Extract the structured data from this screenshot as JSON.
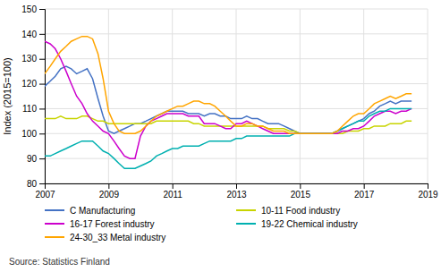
{
  "chart_data": {
    "type": "line",
    "y_label": "Index (2015=100)",
    "annotations": [
      "Source: Statistics Finland"
    ],
    "x": [
      2007.0,
      2007.17,
      2007.33,
      2007.5,
      2007.67,
      2007.83,
      2008.0,
      2008.17,
      2008.33,
      2008.5,
      2008.67,
      2008.83,
      2009.0,
      2009.17,
      2009.33,
      2009.5,
      2009.67,
      2009.83,
      2010.0,
      2010.17,
      2010.33,
      2010.5,
      2010.67,
      2010.83,
      2011.0,
      2011.17,
      2011.33,
      2011.5,
      2011.67,
      2011.83,
      2012.0,
      2012.17,
      2012.33,
      2012.5,
      2012.67,
      2012.83,
      2013.0,
      2013.17,
      2013.33,
      2013.5,
      2013.67,
      2013.83,
      2014.0,
      2014.17,
      2014.33,
      2014.5,
      2014.67,
      2014.83,
      2015.0,
      2015.17,
      2015.33,
      2015.5,
      2015.67,
      2015.83,
      2016.0,
      2016.17,
      2016.33,
      2016.5,
      2016.67,
      2016.83,
      2017.0,
      2017.17,
      2017.33,
      2017.5,
      2017.67,
      2017.83,
      2018.0,
      2018.17,
      2018.33,
      2018.5
    ],
    "series": [
      {
        "name": "C Manufacturing",
        "color": "#4472C4",
        "values": [
          119,
          121,
          123,
          126,
          127,
          126,
          124,
          125,
          126,
          122,
          114,
          107,
          101,
          100,
          101,
          102,
          103,
          104,
          104,
          105,
          106,
          107,
          108,
          109,
          109,
          109,
          109,
          108,
          108,
          108,
          107,
          108,
          108,
          107,
          107,
          106,
          106,
          106,
          107,
          106,
          106,
          105,
          104,
          104,
          104,
          103,
          102,
          101,
          100,
          100,
          100,
          100,
          100,
          100,
          100,
          101,
          102,
          103,
          104,
          105,
          106,
          108,
          109,
          111,
          112,
          113,
          112,
          113,
          113,
          113
        ]
      },
      {
        "name": "10-11 Food industry",
        "color": "#C8D400",
        "values": [
          106,
          106,
          106,
          107,
          106,
          106,
          106,
          107,
          107,
          106,
          105,
          105,
          104,
          104,
          104,
          104,
          104,
          104,
          104,
          104,
          104,
          105,
          105,
          105,
          105,
          105,
          105,
          105,
          104,
          104,
          103,
          103,
          103,
          103,
          103,
          103,
          103,
          103,
          103,
          103,
          103,
          103,
          102,
          102,
          102,
          102,
          101,
          101,
          100,
          100,
          100,
          100,
          100,
          100,
          100,
          100,
          100,
          101,
          101,
          101,
          102,
          102,
          103,
          103,
          103,
          104,
          104,
          104,
          105,
          105
        ]
      },
      {
        "name": "16-17 Forest industry",
        "color": "#CC00CC",
        "values": [
          137,
          136,
          134,
          130,
          125,
          120,
          115,
          112,
          108,
          105,
          103,
          101,
          100,
          97,
          94,
          91,
          90,
          90,
          99,
          103,
          105,
          106,
          107,
          108,
          108,
          108,
          108,
          107,
          107,
          107,
          104,
          104,
          104,
          103,
          102,
          102,
          104,
          104,
          105,
          104,
          103,
          102,
          101,
          100,
          100,
          100,
          100,
          100,
          100,
          100,
          100,
          100,
          100,
          100,
          100,
          100,
          101,
          101,
          102,
          102,
          103,
          105,
          107,
          108,
          109,
          109,
          108,
          109,
          109,
          110
        ]
      },
      {
        "name": "19-22 Chemical industry",
        "color": "#00B0B0",
        "values": [
          91,
          91,
          92,
          93,
          94,
          95,
          96,
          97,
          97,
          97,
          95,
          93,
          92,
          90,
          88,
          86,
          86,
          86,
          87,
          88,
          89,
          91,
          92,
          93,
          94,
          94,
          95,
          95,
          95,
          95,
          96,
          97,
          97,
          97,
          97,
          97,
          98,
          98,
          99,
          99,
          99,
          99,
          99,
          99,
          99,
          99,
          99,
          100,
          100,
          100,
          100,
          100,
          100,
          100,
          100,
          101,
          102,
          103,
          104,
          105,
          105,
          107,
          108,
          109,
          109,
          110,
          110,
          110,
          110,
          110
        ]
      },
      {
        "name": "24-30_33 Metal industry",
        "color": "#FFA500",
        "values": [
          124,
          127,
          130,
          133,
          135,
          137,
          138,
          139,
          139,
          138,
          132,
          122,
          109,
          104,
          101,
          100,
          100,
          100,
          101,
          103,
          105,
          107,
          108,
          109,
          110,
          111,
          111,
          112,
          113,
          113,
          112,
          112,
          111,
          109,
          107,
          105,
          103,
          103,
          104,
          104,
          103,
          103,
          102,
          101,
          101,
          101,
          100,
          100,
          100,
          100,
          100,
          100,
          100,
          100,
          100,
          101,
          103,
          105,
          107,
          108,
          108,
          110,
          112,
          113,
          114,
          115,
          114,
          115,
          116,
          116
        ]
      }
    ],
    "xlim": [
      2007.0,
      2019.0
    ],
    "ylim": [
      80,
      150
    ],
    "xticks": [
      2007,
      2009,
      2011,
      2013,
      2015,
      2017,
      2019
    ],
    "yticks": [
      80,
      90,
      100,
      110,
      120,
      130,
      140,
      150
    ],
    "grid": true,
    "legend": "bottom"
  }
}
